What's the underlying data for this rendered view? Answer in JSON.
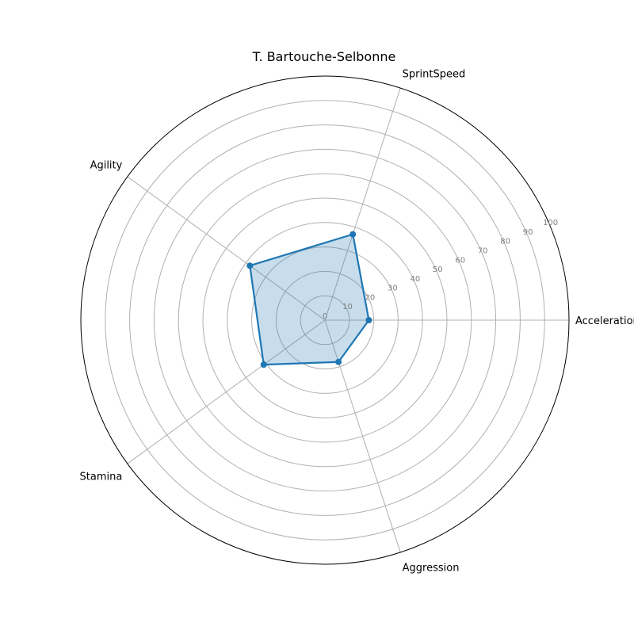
{
  "chart_data": {
    "type": "radar",
    "title": "T. Bartouche-Selbonne",
    "categories": [
      "Acceleration",
      "SprintSpeed",
      "Agility",
      "Stamina",
      "Aggression"
    ],
    "series": [
      {
        "values": [
          18,
          37,
          38,
          31,
          18
        ]
      }
    ],
    "rlim": [
      0,
      100
    ],
    "r_ticks": [
      0,
      10,
      20,
      30,
      40,
      50,
      60,
      70,
      80,
      90,
      100
    ],
    "grid": true,
    "colors": {
      "line": "#1f77b4",
      "fill": "#1f77b4",
      "grid": "#b0b0b0",
      "ticks": "#808080"
    }
  }
}
